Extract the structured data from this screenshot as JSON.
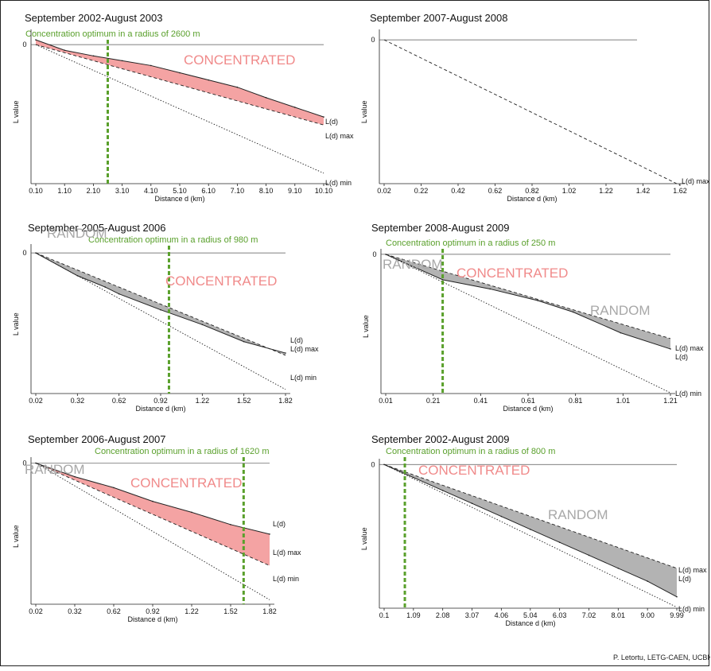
{
  "credit": "P. Letortu, LETG-CAEN, UCBN",
  "colors": {
    "concentrated": "#f08a8a",
    "concentrated_fill": "#f4a3a3",
    "random": "#a8a8a8",
    "random_fill": "#b3b3b3",
    "optimum": "#5aa02c"
  },
  "chart_data": [
    {
      "type": "area",
      "title": "September 2002-August 2003",
      "optimum_label": "Concentration optimum in a radius of 2600 m",
      "optimum_x": 2.6,
      "xlabel": "Distance d (km)",
      "ylabel": "L value",
      "y_ticks": [
        "0"
      ],
      "xlim": [
        0.1,
        10.1
      ],
      "x_ticks": [
        "0.10",
        "1.10",
        "2.10",
        "3.10",
        "4.10",
        "5.10",
        "6.10",
        "7.10",
        "8.10",
        "9.10",
        "10.10"
      ],
      "regions": [
        {
          "label": "CONCENTRATED",
          "type": "concentrated"
        }
      ],
      "legend_labels": {
        "ld": "L(d)",
        "max": "L(d) max",
        "min": "L(d) min"
      },
      "series": [
        {
          "name": "L(d)",
          "x": [
            0.1,
            1.1,
            2.1,
            3.1,
            4.1,
            5.1,
            6.1,
            7.1,
            8.1,
            9.1,
            10.1
          ],
          "values": [
            0.06,
            -0.07,
            -0.14,
            -0.2,
            -0.26,
            -0.35,
            -0.44,
            -0.53,
            -0.66,
            -0.78,
            -0.9
          ]
        },
        {
          "name": "L(d) max",
          "x": [
            0.1,
            10.1
          ],
          "values": [
            0,
            -1.0
          ]
        },
        {
          "name": "L(d) min",
          "x": [
            0.1,
            10.1
          ],
          "values": [
            0,
            -1.6
          ]
        }
      ]
    },
    {
      "type": "line",
      "title": "September 2007-August 2008",
      "xlabel": "Distance d (km)",
      "ylabel": "L value",
      "y_ticks": [
        "0"
      ],
      "xlim": [
        0.02,
        1.62
      ],
      "x_ticks": [
        "0.02",
        "0.22",
        "0.42",
        "0.62",
        "0.82",
        "1.02",
        "1.22",
        "1.42",
        "1.62"
      ],
      "legend_labels": {
        "max": "L(d) max"
      },
      "series": [
        {
          "name": "L(d) max",
          "x": [
            0.02,
            1.62
          ],
          "values": [
            0,
            -1.0
          ]
        }
      ]
    },
    {
      "type": "area",
      "title": "September 2005-August 2006",
      "optimum_label": "Concentration optimum in a radius of 980 m",
      "optimum_x": 0.98,
      "xlabel": "Distance d (km)",
      "ylabel": "L value",
      "y_ticks": [
        "0"
      ],
      "xlim": [
        0.02,
        1.82
      ],
      "x_ticks": [
        "0.02",
        "0.32",
        "0.62",
        "0.92",
        "1.22",
        "1.52",
        "1.82"
      ],
      "regions": [
        {
          "label": "RANDOM",
          "type": "random"
        },
        {
          "label": "CONCENTRATED",
          "type": "concentrated"
        }
      ],
      "legend_labels": {
        "ld": "L(d)",
        "max": "L(d) max",
        "min": "L(d) min"
      },
      "series": [
        {
          "name": "L(d)",
          "x": [
            0.02,
            0.32,
            0.52,
            0.62,
            0.92,
            1.22,
            1.52,
            1.82
          ],
          "values": [
            0,
            -0.2,
            -0.3,
            -0.36,
            -0.5,
            -0.63,
            -0.78,
            -0.88
          ]
        },
        {
          "name": "L(d) max",
          "x": [
            0.02,
            1.82
          ],
          "values": [
            0,
            -0.9
          ]
        },
        {
          "name": "L(d) min",
          "x": [
            0.02,
            1.82
          ],
          "values": [
            0,
            -1.2
          ]
        }
      ]
    },
    {
      "type": "area",
      "title": "September 2008-August 2009",
      "optimum_label": "Concentration optimum in a radius of 250 m",
      "optimum_x": 0.25,
      "xlabel": "Distance d (km)",
      "ylabel": "L value",
      "y_ticks": [
        "0"
      ],
      "xlim": [
        0.01,
        1.21
      ],
      "x_ticks": [
        "0.01",
        "0.21",
        "0.41",
        "0.61",
        "0.81",
        "1.01",
        "1.21"
      ],
      "regions": [
        {
          "label": "RANDOM",
          "type": "random"
        },
        {
          "label": "CONCENTRATED",
          "type": "concentrated"
        },
        {
          "label": "RANDOM",
          "type": "random"
        }
      ],
      "legend_labels": {
        "ld": "L(d)",
        "max": "L(d) max",
        "min": "L(d) min"
      },
      "series": [
        {
          "name": "L(d)",
          "x": [
            0.01,
            0.25,
            0.45,
            0.65,
            0.8,
            1.0,
            1.21
          ],
          "values": [
            0,
            -0.22,
            -0.3,
            -0.4,
            -0.5,
            -0.68,
            -0.82
          ]
        },
        {
          "name": "L(d) max",
          "x": [
            0.01,
            1.21
          ],
          "values": [
            0,
            -0.73
          ]
        },
        {
          "name": "L(d) min",
          "x": [
            0.01,
            1.21
          ],
          "values": [
            0,
            -1.2
          ]
        }
      ]
    },
    {
      "type": "area",
      "title": "September 2006-August 2007",
      "optimum_label": "Concentration optimum in a radius of 1620 m",
      "optimum_x": 1.62,
      "xlabel": "Distance d (km)",
      "ylabel": "L value",
      "y_ticks": [
        "0"
      ],
      "xlim": [
        0.02,
        1.82
      ],
      "x_ticks": [
        "0.02",
        "0.32",
        "0.62",
        "0.92",
        "1.22",
        "1.52",
        "1.82"
      ],
      "regions": [
        {
          "label": "RANDOM",
          "type": "random"
        },
        {
          "label": "CONCENTRATED",
          "type": "concentrated"
        }
      ],
      "legend_labels": {
        "ld": "L(d)",
        "max": "L(d) max",
        "min": "L(d) min"
      },
      "series": [
        {
          "name": "L(d)",
          "x": [
            0.02,
            0.32,
            0.62,
            0.92,
            1.22,
            1.52,
            1.82
          ],
          "values": [
            0,
            -0.1,
            -0.18,
            -0.28,
            -0.36,
            -0.45,
            -0.52
          ]
        },
        {
          "name": "L(d) max",
          "x": [
            0.02,
            1.82
          ],
          "values": [
            0,
            -0.75
          ]
        },
        {
          "name": "L(d) min",
          "x": [
            0.02,
            1.82
          ],
          "values": [
            0,
            -1.0
          ]
        }
      ]
    },
    {
      "type": "area",
      "title": "September 2002-August 2009",
      "optimum_label": "Concentration optimum in a radius of 800 m",
      "optimum_x": 0.8,
      "xlabel": "Distance d (km)",
      "ylabel": "L value",
      "y_ticks": [
        "0"
      ],
      "xlim": [
        0.1,
        9.99
      ],
      "x_ticks": [
        "0.1",
        "1.09",
        "2.08",
        "3.07",
        "4.06",
        "5.04",
        "6.03",
        "7.02",
        "8.01",
        "9.00",
        "9.99"
      ],
      "regions": [
        {
          "label": "CONCENTRATED",
          "type": "concentrated"
        },
        {
          "label": "RANDOM",
          "type": "random"
        }
      ],
      "legend_labels": {
        "ld": "L(d)",
        "max": "L(d) max",
        "min": "L(d) min"
      },
      "series": [
        {
          "name": "L(d)",
          "x": [
            0.1,
            1.09,
            2.08,
            3.07,
            4.06,
            5.04,
            6.03,
            7.02,
            8.01,
            9.0,
            9.99
          ],
          "values": [
            0,
            -0.1,
            -0.2,
            -0.3,
            -0.4,
            -0.5,
            -0.6,
            -0.7,
            -0.8,
            -0.9,
            -1.02
          ]
        },
        {
          "name": "L(d) max",
          "x": [
            0.1,
            9.99
          ],
          "values": [
            0,
            -0.8
          ]
        },
        {
          "name": "L(d) min",
          "x": [
            0.1,
            9.99
          ],
          "values": [
            0,
            -1.1
          ]
        }
      ]
    }
  ]
}
